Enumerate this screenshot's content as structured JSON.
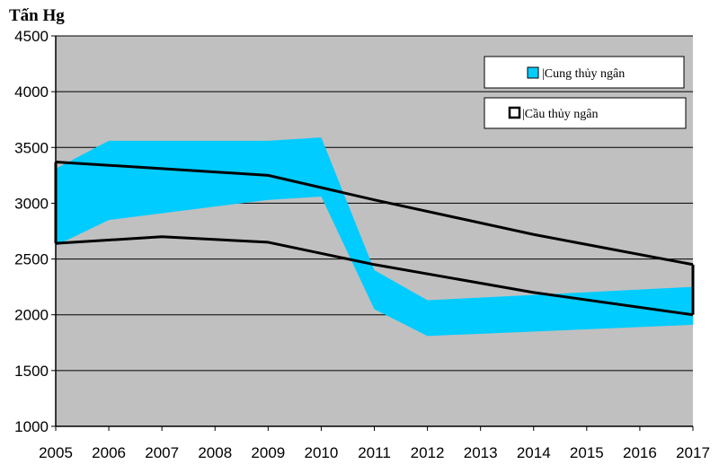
{
  "chart_data": {
    "type": "area",
    "ylabel": "Tấn Hg",
    "xlabel": "",
    "title": "",
    "xlim": [
      2005,
      2017
    ],
    "ylim": [
      1000,
      4500
    ],
    "x_ticks": [
      "2005",
      "2006",
      "2007",
      "2008",
      "2009",
      "2010",
      "2011",
      "2012",
      "2013",
      "2014",
      "2015",
      "2016",
      "2017"
    ],
    "y_ticks": [
      "1000",
      "1500",
      "2000",
      "2500",
      "3000",
      "3500",
      "4000",
      "4500"
    ],
    "grid": "horizontal",
    "legend_position": "top-right",
    "colors": {
      "plot_background": "#c0c0c0",
      "supply_fill": "#00ccff",
      "demand_line": "#000000"
    },
    "series": [
      {
        "name": "|Cung thủy ngân",
        "kind": "band",
        "upper": [
          [
            2005,
            3310
          ],
          [
            2006,
            3560
          ],
          [
            2009,
            3560
          ],
          [
            2010,
            3590
          ],
          [
            2011,
            2400
          ],
          [
            2012,
            2130
          ],
          [
            2017,
            2250
          ]
        ],
        "lower": [
          [
            2005,
            2620
          ],
          [
            2006,
            2850
          ],
          [
            2007,
            2910
          ],
          [
            2009,
            3030
          ],
          [
            2010,
            3060
          ],
          [
            2011,
            2050
          ],
          [
            2012,
            1810
          ],
          [
            2017,
            1910
          ]
        ]
      },
      {
        "name": "|Cầu thủy ngân",
        "kind": "band-outline",
        "upper": [
          [
            2005,
            3370
          ],
          [
            2009,
            3250
          ],
          [
            2011,
            3030
          ],
          [
            2014,
            2720
          ],
          [
            2017,
            2450
          ]
        ],
        "lower": [
          [
            2005,
            2640
          ],
          [
            2007,
            2700
          ],
          [
            2009,
            2650
          ],
          [
            2011,
            2450
          ],
          [
            2014,
            2200
          ],
          [
            2017,
            2000
          ]
        ]
      }
    ]
  }
}
